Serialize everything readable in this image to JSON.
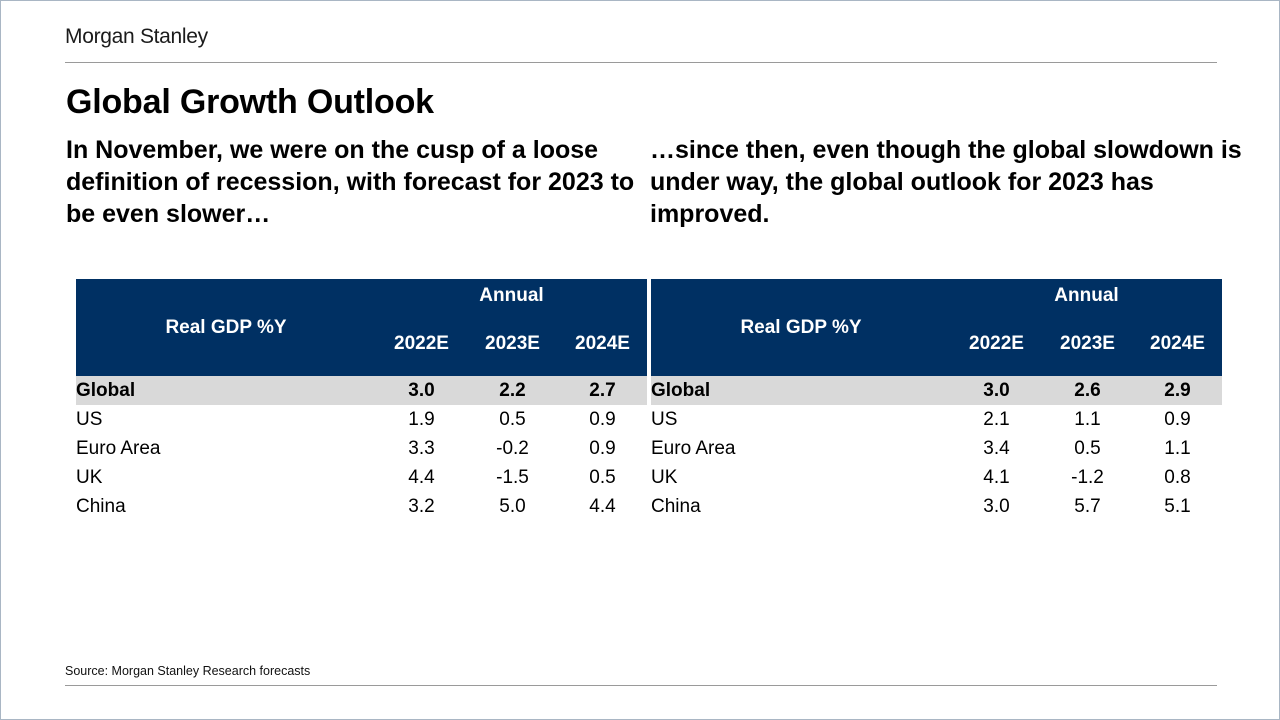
{
  "brand": "Morgan Stanley",
  "title": "Global Growth Outlook",
  "subtitles": {
    "left": "In November, we were on the cusp of a loose definition of recession, with forecast for 2023 to be even slower…",
    "right": "…since then, even though the global slowdown is under way, the global outlook for 2023 has improved."
  },
  "source": "Source: Morgan Stanley Research forecasts",
  "tables": {
    "left": {
      "row_header": "Real GDP %Y",
      "group_header": "Annual",
      "years": [
        "2022E",
        "2023E",
        "2024E"
      ],
      "global": {
        "label": "Global",
        "values": [
          "3.0",
          "2.2",
          "2.7"
        ]
      },
      "rows": [
        {
          "label": "US",
          "values": [
            "1.9",
            "0.5",
            "0.9"
          ]
        },
        {
          "label": "Euro Area",
          "values": [
            "3.3",
            "-0.2",
            "0.9"
          ]
        },
        {
          "label": "UK",
          "values": [
            "4.4",
            "-1.5",
            "0.5"
          ]
        },
        {
          "label": "China",
          "values": [
            "3.2",
            "5.0",
            "4.4"
          ]
        }
      ]
    },
    "right": {
      "row_header": "Real GDP %Y",
      "group_header": "Annual",
      "years": [
        "2022E",
        "2023E",
        "2024E"
      ],
      "global": {
        "label": "Global",
        "values": [
          "3.0",
          "2.6",
          "2.9"
        ]
      },
      "rows": [
        {
          "label": "US",
          "values": [
            "2.1",
            "1.1",
            "0.9"
          ]
        },
        {
          "label": "Euro Area",
          "values": [
            "3.4",
            "0.5",
            "1.1"
          ]
        },
        {
          "label": "UK",
          "values": [
            "4.1",
            "-1.2",
            "0.8"
          ]
        },
        {
          "label": "China",
          "values": [
            "3.0",
            "5.7",
            "5.1"
          ]
        }
      ]
    }
  },
  "colors": {
    "header_bg": "#003063",
    "global_row_bg": "#d9d9d9"
  }
}
